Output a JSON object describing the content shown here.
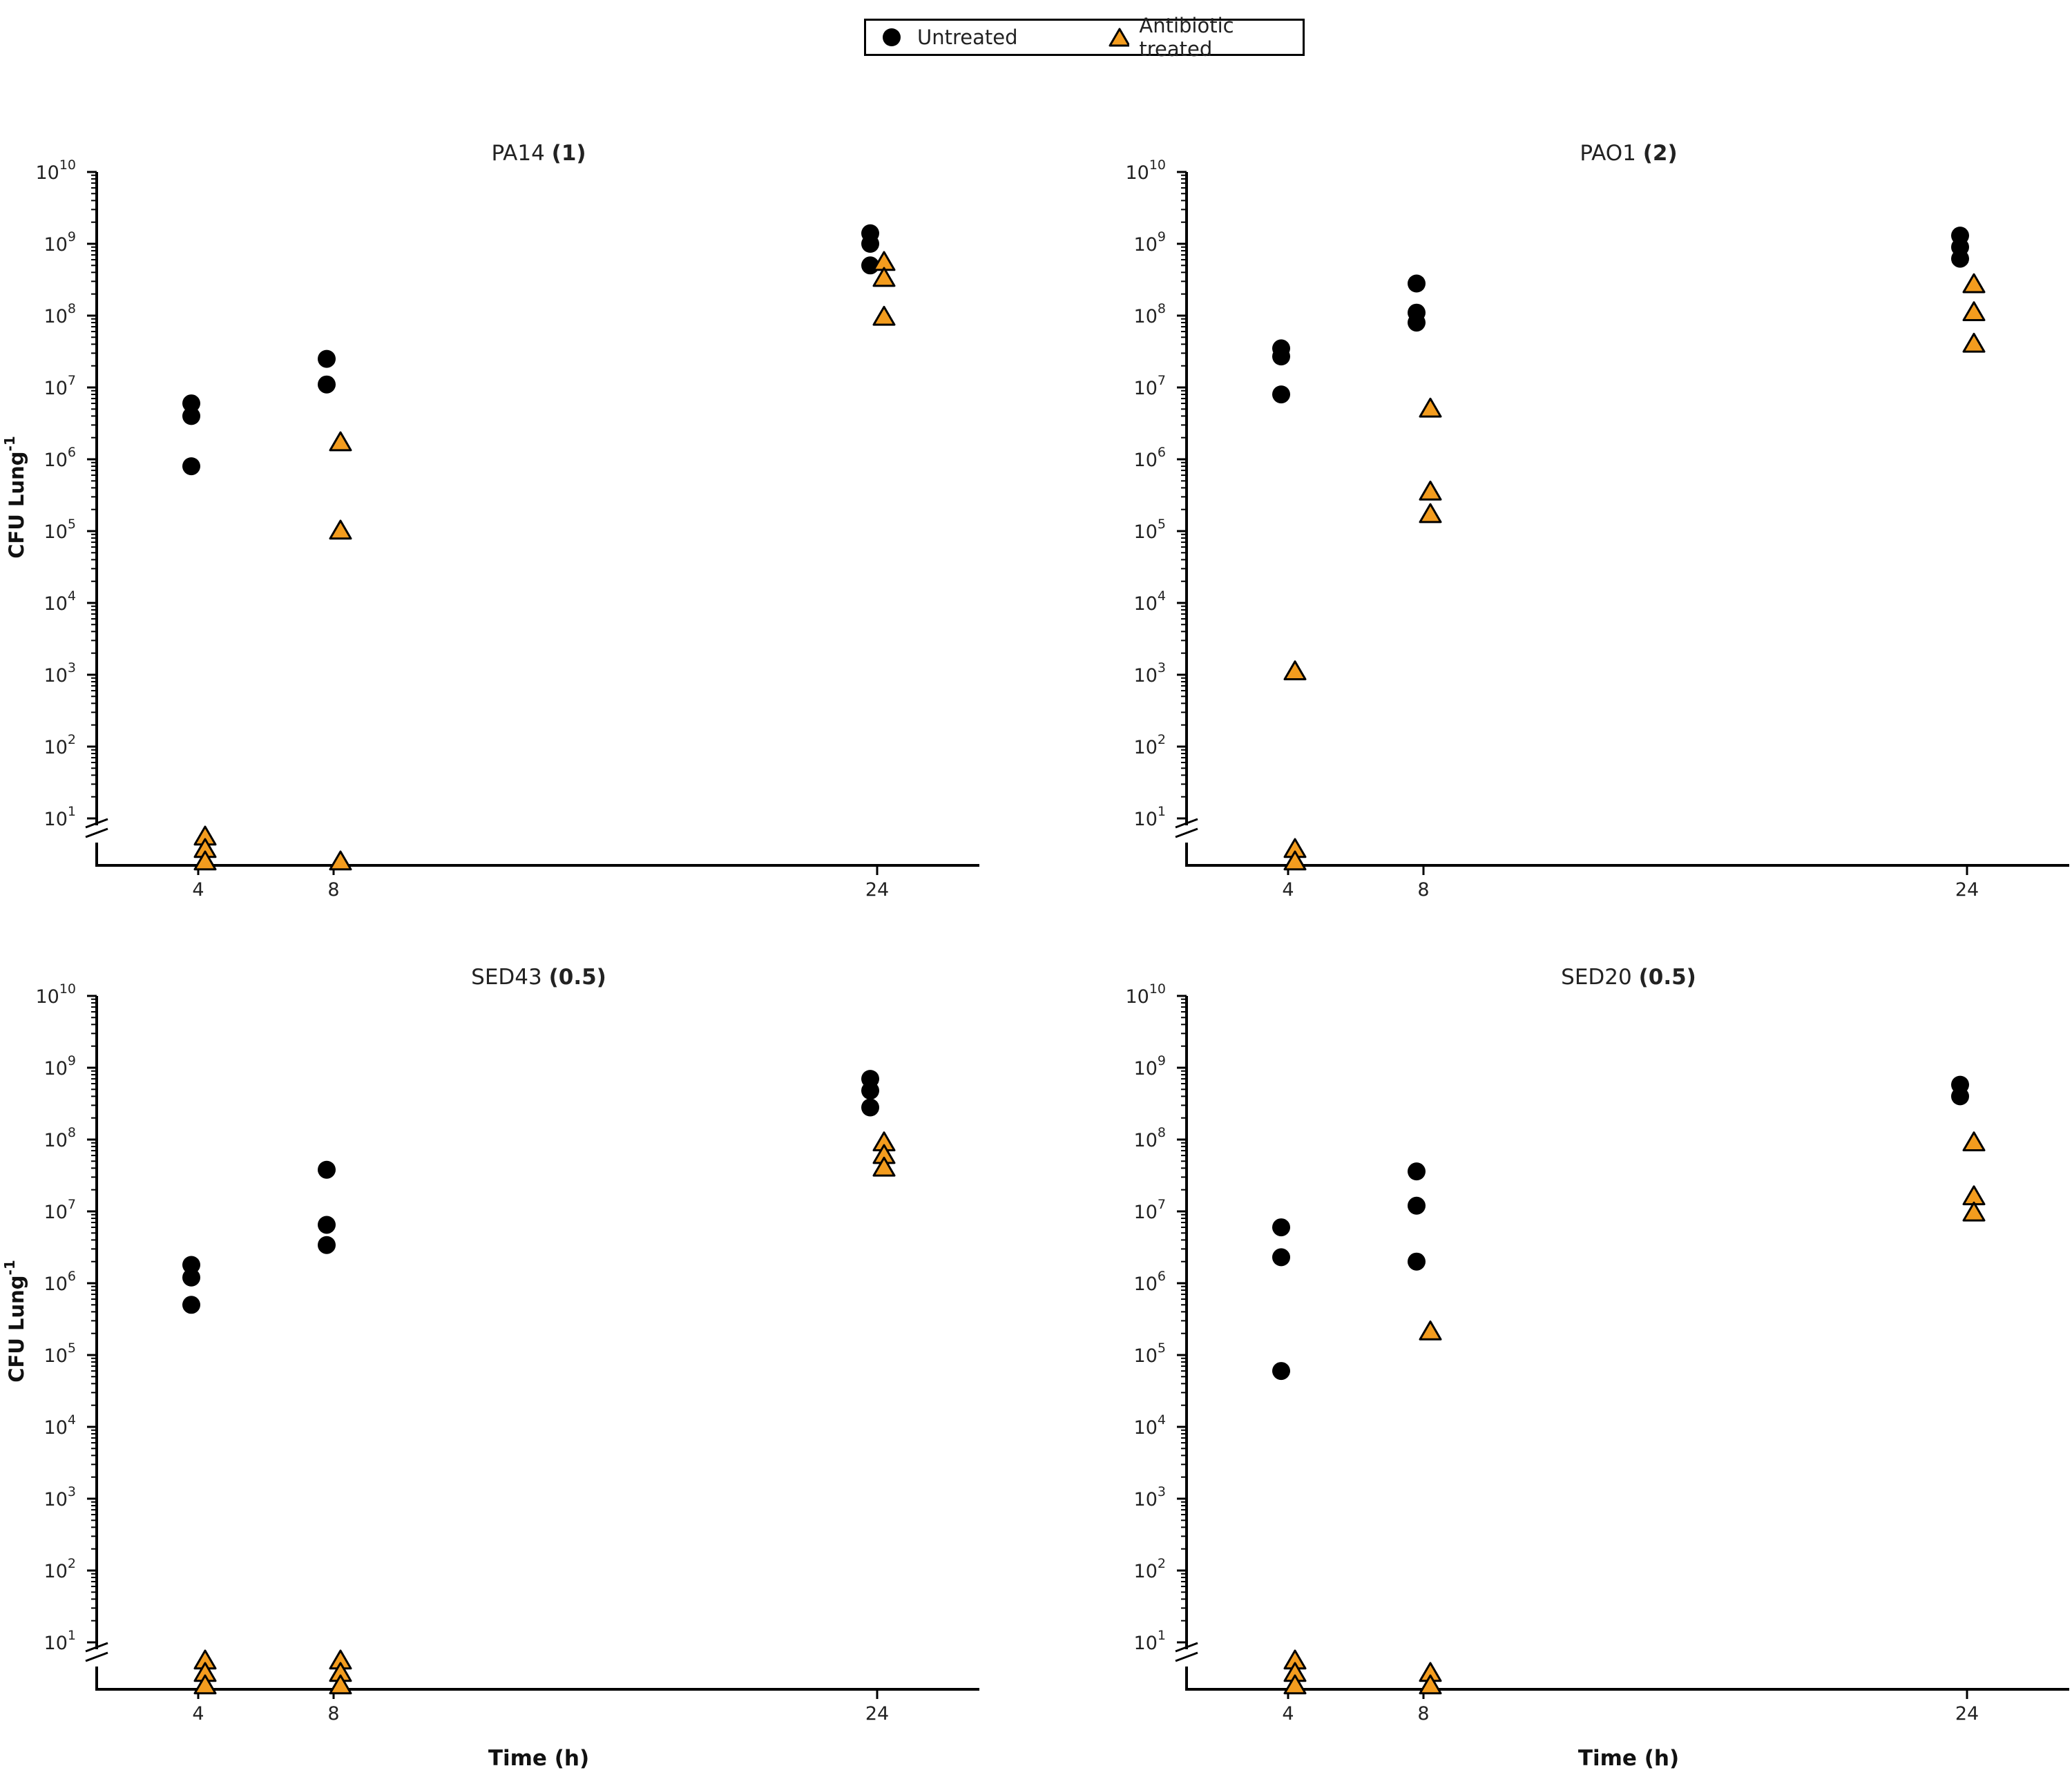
{
  "legend": {
    "untreated_label": "Untreated",
    "treated_label": "Antibiotic treated"
  },
  "colors": {
    "untreated": "#000000",
    "treated": "#F39C1E",
    "axis": "#000000"
  },
  "chart_data": [
    {
      "type": "scatter",
      "title": "PA14",
      "title_bold": "(1)",
      "xlabel": "",
      "ylabel": "CFU Lung-1",
      "x_ticks": [
        4,
        8,
        24
      ],
      "y_scale": "log",
      "y_tick_exponents": [
        1,
        2,
        3,
        4,
        5,
        6,
        7,
        8,
        9,
        10
      ],
      "axis_break": "below 10^1",
      "series": [
        {
          "name": "Untreated",
          "points": [
            [
              4,
              6000000
            ],
            [
              4,
              4000000
            ],
            [
              4,
              800000
            ],
            [
              8,
              25000000
            ],
            [
              8,
              11000000
            ],
            [
              24,
              1400000000
            ],
            [
              24,
              1000000000
            ],
            [
              24,
              500000000
            ]
          ]
        },
        {
          "name": "Antibiotic treated",
          "points": [
            [
              4,
              "bld"
            ],
            [
              4,
              "bld"
            ],
            [
              4,
              "bld"
            ],
            [
              8,
              1700000
            ],
            [
              8,
              100000
            ],
            [
              8,
              "bld"
            ],
            [
              24,
              550000000
            ],
            [
              24,
              330000000
            ],
            [
              24,
              95000000
            ]
          ]
        }
      ]
    },
    {
      "type": "scatter",
      "title": "PAO1",
      "title_bold": "(2)",
      "xlabel": "",
      "ylabel": "",
      "x_ticks": [
        4,
        8,
        24
      ],
      "y_scale": "log",
      "y_tick_exponents": [
        1,
        2,
        3,
        4,
        5,
        6,
        7,
        8,
        9,
        10
      ],
      "axis_break": "below 10^1",
      "series": [
        {
          "name": "Untreated",
          "points": [
            [
              4,
              35000000
            ],
            [
              4,
              27000000
            ],
            [
              4,
              8000000
            ],
            [
              8,
              280000000
            ],
            [
              8,
              110000000
            ],
            [
              8,
              80000000
            ],
            [
              24,
              1300000000
            ],
            [
              24,
              900000000
            ],
            [
              24,
              620000000
            ]
          ]
        },
        {
          "name": "Antibiotic treated",
          "points": [
            [
              4,
              1100
            ],
            [
              4,
              "bld"
            ],
            [
              4,
              "bld"
            ],
            [
              8,
              5000000
            ],
            [
              8,
              350000
            ],
            [
              8,
              170000
            ],
            [
              24,
              270000000
            ],
            [
              24,
              110000000
            ],
            [
              24,
              40000000
            ]
          ]
        }
      ]
    },
    {
      "type": "scatter",
      "title": "SED43",
      "title_bold": "(0.5)",
      "xlabel": "Time (h)",
      "ylabel": "CFU Lung-1",
      "x_ticks": [
        4,
        8,
        24
      ],
      "y_scale": "log",
      "y_tick_exponents": [
        1,
        2,
        3,
        4,
        5,
        6,
        7,
        8,
        9,
        10
      ],
      "axis_break": "below 10^1",
      "series": [
        {
          "name": "Untreated",
          "points": [
            [
              4,
              1800000
            ],
            [
              4,
              1200000
            ],
            [
              4,
              500000
            ],
            [
              8,
              38000000
            ],
            [
              8,
              6500000
            ],
            [
              8,
              3400000
            ],
            [
              24,
              700000000
            ],
            [
              24,
              480000000
            ],
            [
              24,
              280000000
            ]
          ]
        },
        {
          "name": "Antibiotic treated",
          "points": [
            [
              4,
              "bld"
            ],
            [
              4,
              "bld"
            ],
            [
              4,
              "bld"
            ],
            [
              8,
              "bld"
            ],
            [
              8,
              "bld"
            ],
            [
              8,
              "bld"
            ],
            [
              24,
              90000000
            ],
            [
              24,
              60000000
            ],
            [
              24,
              40000000
            ]
          ]
        }
      ]
    },
    {
      "type": "scatter",
      "title": "SED20",
      "title_bold": "(0.5)",
      "xlabel": "Time (h)",
      "ylabel": "",
      "x_ticks": [
        4,
        8,
        24
      ],
      "y_scale": "log",
      "y_tick_exponents": [
        1,
        2,
        3,
        4,
        5,
        6,
        7,
        8,
        9,
        10
      ],
      "axis_break": "below 10^1",
      "series": [
        {
          "name": "Untreated",
          "points": [
            [
              4,
              6000000
            ],
            [
              4,
              2300000
            ],
            [
              4,
              60000
            ],
            [
              8,
              36000000
            ],
            [
              8,
              12000000
            ],
            [
              8,
              2000000
            ],
            [
              24,
              580000000
            ],
            [
              24,
              400000000
            ]
          ]
        },
        {
          "name": "Antibiotic treated",
          "points": [
            [
              4,
              "bld"
            ],
            [
              4,
              "bld"
            ],
            [
              4,
              "bld"
            ],
            [
              8,
              210000
            ],
            [
              8,
              "bld"
            ],
            [
              8,
              "bld"
            ],
            [
              24,
              90000000
            ],
            [
              24,
              16000000
            ],
            [
              24,
              9500000
            ]
          ]
        }
      ]
    }
  ]
}
